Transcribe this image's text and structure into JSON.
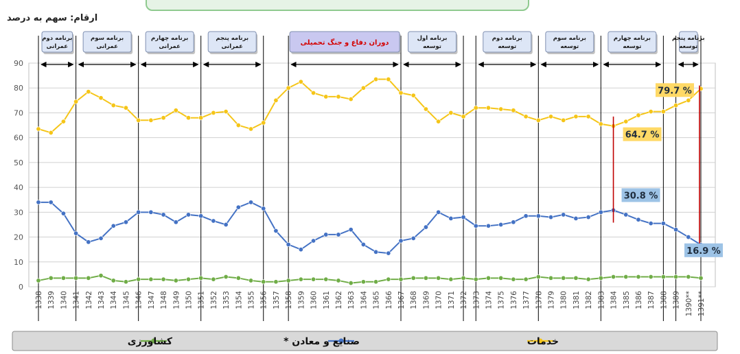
{
  "units_label": "ارقام: سهم به درصد",
  "colors": {
    "services": "#f5c518",
    "industry": "#4472c4",
    "agriculture": "#70ad47",
    "annotation_line": "#c00000",
    "label_yellow_bg": "#ffd966",
    "label_blue_bg": "#9dc3e6",
    "period_box_bg": "#dde6f6",
    "war_box_bg": "#c9c8f0",
    "war_text": "#d40000",
    "legend_bg": "#d9d9d9"
  },
  "periods": [
    {
      "label": "برنامه دوم عمرانی",
      "from": "1338",
      "to": "1341",
      "special": false
    },
    {
      "label": "برنامه سوم عمرانی",
      "from": "1341",
      "to": "1346",
      "special": false
    },
    {
      "label": "برنامه چهارم عمرانی",
      "from": "1346",
      "to": "1351",
      "special": false
    },
    {
      "label": "برنامه پنجم عمرانی",
      "from": "1351",
      "to": "1356",
      "special": false
    },
    {
      "label": "دوران دفاع و جنگ تحمیلی",
      "from": "1358",
      "to": "1367",
      "special": true
    },
    {
      "label": "برنامه اول توسعه",
      "from": "1367",
      "to": "1372",
      "special": false
    },
    {
      "label": "برنامه دوم توسعه",
      "from": "1373",
      "to": "1378",
      "special": false
    },
    {
      "label": "برنامه سوم توسعه",
      "from": "1378",
      "to": "1383",
      "special": false
    },
    {
      "label": "برنامه چهارم توسعه",
      "from": "1383",
      "to": "1388",
      "special": false
    },
    {
      "label": "برنامه پنجم توسعه",
      "from": "1389",
      "to": "1391**",
      "special": false
    }
  ],
  "annotations": [
    {
      "text": "79.7 %",
      "series": "services",
      "year": "1391**",
      "value": 79.7
    },
    {
      "text": "64.7 %",
      "series": "services",
      "year": "1384",
      "value": 64.7
    },
    {
      "text": "30.8 %",
      "series": "industry",
      "year": "1384",
      "value": 30.8
    },
    {
      "text": "16.9 %",
      "series": "industry",
      "year": "1391**",
      "value": 16.9
    }
  ],
  "chart_data": {
    "type": "line",
    "title": "",
    "ylim": [
      0,
      90
    ],
    "yticks": [
      0,
      10,
      20,
      30,
      40,
      50,
      60,
      70,
      80,
      90
    ],
    "grid": true,
    "legend_position": "bottom",
    "x": [
      "1338",
      "1339",
      "1340",
      "1341",
      "1342",
      "1343",
      "1344",
      "1345",
      "1346",
      "1347",
      "1348",
      "1349",
      "1350",
      "1351",
      "1352",
      "1353",
      "1354",
      "1355",
      "1356",
      "1357",
      "1358",
      "1359",
      "1360",
      "1361",
      "1362",
      "1363",
      "1364",
      "1365",
      "1366",
      "1367",
      "1368",
      "1369",
      "1370",
      "1371",
      "1372",
      "1373",
      "1374",
      "1375",
      "1376",
      "1377",
      "1378",
      "1379",
      "1380",
      "1381",
      "1382",
      "1383",
      "1384",
      "1385",
      "1386",
      "1387",
      "1388",
      "1389",
      "1390**",
      "1391**"
    ],
    "series": [
      {
        "name": "خدمات",
        "key": "services",
        "values": [
          63.5,
          62,
          66.5,
          74.5,
          78.5,
          76,
          73,
          72,
          67,
          67,
          68,
          71,
          68,
          68,
          70,
          70.5,
          65,
          63.5,
          66,
          75,
          80,
          82.5,
          78,
          76.5,
          76.5,
          75.5,
          80,
          83.5,
          83.5,
          78,
          77,
          71.5,
          66.5,
          70,
          68.5,
          72,
          72,
          71.5,
          71,
          68.5,
          67,
          68.5,
          67,
          68.5,
          68.5,
          65.5,
          64.7,
          66.5,
          69,
          70.5,
          70.5,
          73,
          75,
          79.7
        ]
      },
      {
        "name": "صنایع و معادن *",
        "key": "industry",
        "values": [
          34,
          34,
          29.5,
          21.5,
          18,
          19.5,
          24.5,
          26,
          30,
          30,
          29,
          26,
          29,
          28.5,
          26.5,
          25,
          32,
          34,
          31.5,
          22.5,
          17,
          15,
          18.5,
          21,
          21,
          23,
          17,
          14,
          13.5,
          18.5,
          19.5,
          24,
          30,
          27.5,
          28,
          24.5,
          24.5,
          25,
          26,
          28.5,
          28.5,
          28,
          29,
          27.5,
          28,
          30,
          30.8,
          29,
          27,
          25.5,
          25.5,
          23,
          20,
          16.9
        ]
      },
      {
        "name": "کشاورزی",
        "key": "agriculture",
        "values": [
          2.5,
          3.5,
          3.5,
          3.5,
          3.5,
          4.5,
          2.5,
          2,
          3,
          3,
          3,
          2.5,
          3,
          3.5,
          3,
          4,
          3.5,
          2.5,
          2,
          2,
          2.5,
          3,
          3,
          3,
          2.5,
          1.5,
          2,
          2,
          3,
          3,
          3.5,
          3.5,
          3.5,
          3,
          3.5,
          3,
          3.5,
          3.5,
          3,
          3,
          4,
          3.5,
          3.5,
          3.5,
          3,
          3.5,
          4,
          4,
          4,
          4,
          4,
          4,
          4,
          3.5
        ]
      }
    ],
    "legend": [
      {
        "key": "agriculture",
        "label": "کشاورزی"
      },
      {
        "key": "industry",
        "label": "صنایع و معادن *"
      },
      {
        "key": "services",
        "label": "خدمات"
      }
    ]
  }
}
